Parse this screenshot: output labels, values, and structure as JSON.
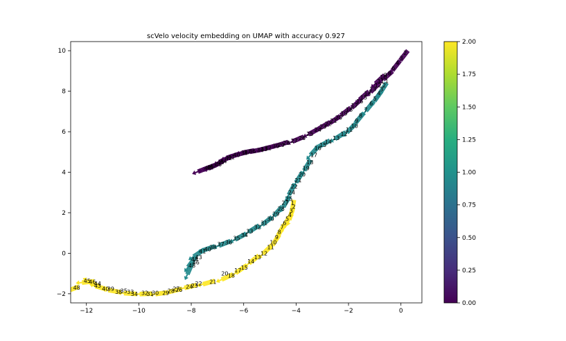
{
  "chart_data": {
    "type": "quiver",
    "title": "scVelo velocity embedding on UMAP with accuracy 0.927",
    "xlabel": "",
    "ylabel": "",
    "xlim": [
      -12.6,
      0.8
    ],
    "ylim": [
      -2.45,
      10.45
    ],
    "xticks": [
      -12,
      -10,
      -8,
      -6,
      -4,
      -2,
      0
    ],
    "yticks": [
      -2,
      0,
      2,
      4,
      6,
      8,
      10
    ],
    "colorbar": {
      "min": 0.0,
      "max": 2.0,
      "ticks": [
        "0.00",
        "0.25",
        "0.50",
        "0.75",
        "1.00",
        "1.25",
        "1.50",
        "1.75",
        "2.00"
      ],
      "colormap": "viridis"
    },
    "series": [
      {
        "value": 0.0,
        "color": "#440154",
        "points": [
          {
            "x": -7.4,
            "y": 4.2,
            "label": "48"
          },
          {
            "x": -7.2,
            "y": 4.3,
            "label": "47"
          },
          {
            "x": -7.0,
            "y": 4.4,
            "label": "46"
          },
          {
            "x": -6.8,
            "y": 4.55,
            "label": "44"
          },
          {
            "x": -6.6,
            "y": 4.7,
            "label": "42"
          },
          {
            "x": -6.3,
            "y": 4.85,
            "label": "40"
          },
          {
            "x": -6.0,
            "y": 4.95,
            "label": "38"
          },
          {
            "x": -5.7,
            "y": 5.05,
            "label": "36"
          },
          {
            "x": -5.4,
            "y": 5.1,
            "label": "34"
          },
          {
            "x": -5.1,
            "y": 5.2,
            "label": "32"
          },
          {
            "x": -4.8,
            "y": 5.3,
            "label": "30"
          },
          {
            "x": -4.4,
            "y": 5.45,
            "label": "28"
          },
          {
            "x": -3.8,
            "y": 5.7,
            "label": "26"
          },
          {
            "x": -3.2,
            "y": 6.1,
            "label": "24"
          },
          {
            "x": -2.8,
            "y": 6.4,
            "label": "22"
          },
          {
            "x": -2.4,
            "y": 6.7,
            "label": "20"
          },
          {
            "x": -2.0,
            "y": 7.1,
            "label": "18"
          },
          {
            "x": -1.6,
            "y": 7.5,
            "label": "16"
          },
          {
            "x": -1.3,
            "y": 7.9,
            "label": "14"
          },
          {
            "x": -0.9,
            "y": 8.3,
            "label": "12"
          },
          {
            "x": -0.7,
            "y": 8.7,
            "label": "10"
          },
          {
            "x": -0.4,
            "y": 8.9,
            "label": "8"
          },
          {
            "x": -0.1,
            "y": 9.4,
            "label": "4"
          },
          {
            "x": 0.2,
            "y": 9.9,
            "label": "2"
          }
        ]
      },
      {
        "value": 1.0,
        "color": "#238a8d",
        "points": [
          {
            "x": -8.0,
            "y": -0.6,
            "label": "48"
          },
          {
            "x": -7.9,
            "y": -0.3,
            "label": "44"
          },
          {
            "x": -7.6,
            "y": 0.1,
            "label": "41"
          },
          {
            "x": -7.2,
            "y": 0.3,
            "label": "38"
          },
          {
            "x": -6.6,
            "y": 0.55,
            "label": "36"
          },
          {
            "x": -6.0,
            "y": 0.9,
            "label": "34"
          },
          {
            "x": -5.5,
            "y": 1.3,
            "label": "32"
          },
          {
            "x": -5.0,
            "y": 1.7,
            "label": "30"
          },
          {
            "x": -4.6,
            "y": 2.2,
            "label": "28"
          },
          {
            "x": -4.3,
            "y": 2.7,
            "label": "25"
          },
          {
            "x": -4.1,
            "y": 3.3,
            "label": "22"
          },
          {
            "x": -3.8,
            "y": 3.9,
            "label": "20"
          },
          {
            "x": -3.5,
            "y": 4.5,
            "label": "18"
          },
          {
            "x": -3.2,
            "y": 5.2,
            "label": "16"
          },
          {
            "x": -2.8,
            "y": 5.5,
            "label": "14"
          },
          {
            "x": -2.2,
            "y": 5.9,
            "label": "12"
          },
          {
            "x": -1.8,
            "y": 6.3,
            "label": "10"
          },
          {
            "x": -1.5,
            "y": 6.8,
            "label": "8"
          },
          {
            "x": -1.1,
            "y": 7.4,
            "label": "6"
          },
          {
            "x": -0.8,
            "y": 7.9,
            "label": "4"
          },
          {
            "x": -0.6,
            "y": 8.3,
            "label": "2"
          }
        ]
      },
      {
        "value": 2.0,
        "color": "#fde725",
        "points": [
          {
            "x": -12.4,
            "y": -1.7,
            "label": "48"
          },
          {
            "x": -11.8,
            "y": -1.4,
            "label": "46"
          },
          {
            "x": -11.6,
            "y": -1.6,
            "label": "43"
          },
          {
            "x": -11.3,
            "y": -1.75,
            "label": "40"
          },
          {
            "x": -10.8,
            "y": -1.9,
            "label": "38"
          },
          {
            "x": -10.2,
            "y": -2.0,
            "label": "34"
          },
          {
            "x": -9.6,
            "y": -2.0,
            "label": "31"
          },
          {
            "x": -9.0,
            "y": -1.95,
            "label": "29"
          },
          {
            "x": -8.5,
            "y": -1.8,
            "label": "26"
          },
          {
            "x": -7.9,
            "y": -1.6,
            "label": "23"
          },
          {
            "x": -7.2,
            "y": -1.4,
            "label": "21"
          },
          {
            "x": -6.5,
            "y": -1.1,
            "label": "18"
          },
          {
            "x": -6.0,
            "y": -0.7,
            "label": "15"
          },
          {
            "x": -5.5,
            "y": -0.2,
            "label": "13"
          },
          {
            "x": -5.0,
            "y": 0.3,
            "label": "11"
          },
          {
            "x": -4.7,
            "y": 0.8,
            "label": "9"
          },
          {
            "x": -4.5,
            "y": 1.3,
            "label": "7"
          },
          {
            "x": -4.3,
            "y": 1.7,
            "label": "5"
          },
          {
            "x": -4.15,
            "y": 2.1,
            "label": "3"
          },
          {
            "x": -4.1,
            "y": 2.5,
            "label": "1"
          }
        ]
      }
    ],
    "extra_labels": [
      {
        "x": -12.0,
        "y": -1.35,
        "label": "45",
        "series": 2
      },
      {
        "x": -11.6,
        "y": -1.5,
        "label": "44",
        "series": 2
      },
      {
        "x": -11.1,
        "y": -1.75,
        "label": "39",
        "series": 2
      },
      {
        "x": -10.6,
        "y": -1.85,
        "label": "35",
        "series": 2
      },
      {
        "x": -10.35,
        "y": -1.9,
        "label": "33",
        "series": 2
      },
      {
        "x": -9.8,
        "y": -1.95,
        "label": "32",
        "series": 2
      },
      {
        "x": -9.4,
        "y": -1.95,
        "label": "30",
        "series": 2
      },
      {
        "x": -8.8,
        "y": -1.85,
        "label": "28",
        "series": 2
      },
      {
        "x": -8.6,
        "y": -1.75,
        "label": "27",
        "series": 2
      },
      {
        "x": -8.1,
        "y": -1.65,
        "label": "24",
        "series": 2
      },
      {
        "x": -7.75,
        "y": -1.5,
        "label": "22",
        "series": 2
      },
      {
        "x": -6.75,
        "y": -1.0,
        "label": "20",
        "series": 2
      },
      {
        "x": -6.25,
        "y": -0.85,
        "label": "17",
        "series": 2
      },
      {
        "x": -5.75,
        "y": -0.4,
        "label": "14",
        "series": 2
      },
      {
        "x": -5.25,
        "y": 0.0,
        "label": "12",
        "series": 2
      },
      {
        "x": -4.9,
        "y": 0.55,
        "label": "10",
        "series": 2
      },
      {
        "x": -4.6,
        "y": 1.05,
        "label": "8",
        "series": 2
      },
      {
        "x": -4.4,
        "y": 1.5,
        "label": "6",
        "series": 2
      },
      {
        "x": -4.2,
        "y": 1.9,
        "label": "4",
        "series": 2
      },
      {
        "x": -4.05,
        "y": 2.3,
        "label": "2",
        "series": 2
      },
      {
        "x": -7.85,
        "y": -0.45,
        "label": "46",
        "series": 1
      },
      {
        "x": -7.75,
        "y": -0.2,
        "label": "43",
        "series": 1
      },
      {
        "x": -7.4,
        "y": 0.2,
        "label": "40",
        "series": 1
      },
      {
        "x": -6.9,
        "y": 0.45,
        "label": "37",
        "series": 1
      },
      {
        "x": -6.3,
        "y": 0.75,
        "label": "35",
        "series": 1
      },
      {
        "x": -5.8,
        "y": 1.1,
        "label": "33",
        "series": 1
      },
      {
        "x": -5.25,
        "y": 1.5,
        "label": "31",
        "series": 1
      },
      {
        "x": -4.8,
        "y": 1.95,
        "label": "29",
        "series": 1
      },
      {
        "x": -4.45,
        "y": 2.5,
        "label": "27",
        "series": 1
      },
      {
        "x": -4.2,
        "y": 3.0,
        "label": "24",
        "series": 1
      },
      {
        "x": -3.95,
        "y": 3.6,
        "label": "21",
        "series": 1
      },
      {
        "x": -3.65,
        "y": 4.2,
        "label": "19",
        "series": 1
      },
      {
        "x": -3.35,
        "y": 4.85,
        "label": "17",
        "series": 1
      },
      {
        "x": -3.0,
        "y": 5.35,
        "label": "15",
        "series": 1
      },
      {
        "x": -2.5,
        "y": 5.7,
        "label": "13",
        "series": 1
      },
      {
        "x": -2.0,
        "y": 6.1,
        "label": "11",
        "series": 1
      },
      {
        "x": -1.65,
        "y": 6.55,
        "label": "9",
        "series": 1
      },
      {
        "x": -1.3,
        "y": 7.1,
        "label": "7",
        "series": 1
      },
      {
        "x": -0.95,
        "y": 7.65,
        "label": "5",
        "series": 1
      },
      {
        "x": -0.7,
        "y": 8.1,
        "label": "3",
        "series": 1
      },
      {
        "x": -0.5,
        "y": 8.5,
        "label": "1",
        "series": 1
      },
      {
        "x": -7.3,
        "y": 4.25,
        "label": "49",
        "series": 0
      },
      {
        "x": -6.9,
        "y": 4.5,
        "label": "45",
        "series": 0
      },
      {
        "x": -6.5,
        "y": 4.75,
        "label": "41",
        "series": 0
      },
      {
        "x": -5.9,
        "y": 5.0,
        "label": "37",
        "series": 0
      },
      {
        "x": -5.25,
        "y": 5.15,
        "label": "33",
        "series": 0
      },
      {
        "x": -4.6,
        "y": 5.35,
        "label": "29",
        "series": 0
      },
      {
        "x": -4.1,
        "y": 5.55,
        "label": "27",
        "series": 0
      },
      {
        "x": -3.5,
        "y": 5.9,
        "label": "25",
        "series": 0
      },
      {
        "x": -3.0,
        "y": 6.25,
        "label": "23",
        "series": 0
      },
      {
        "x": -2.6,
        "y": 6.55,
        "label": "21",
        "series": 0
      },
      {
        "x": -2.2,
        "y": 6.9,
        "label": "19",
        "series": 0
      },
      {
        "x": -1.8,
        "y": 7.3,
        "label": "17",
        "series": 0
      },
      {
        "x": -1.45,
        "y": 7.7,
        "label": "15",
        "series": 0
      },
      {
        "x": -1.1,
        "y": 8.1,
        "label": "13",
        "series": 0
      },
      {
        "x": -0.8,
        "y": 8.5,
        "label": "11",
        "series": 0
      },
      {
        "x": -0.55,
        "y": 8.8,
        "label": "9",
        "series": 0
      },
      {
        "x": -0.25,
        "y": 9.15,
        "label": "6",
        "series": 0
      },
      {
        "x": 0.05,
        "y": 9.65,
        "label": "3",
        "series": 0
      }
    ]
  }
}
